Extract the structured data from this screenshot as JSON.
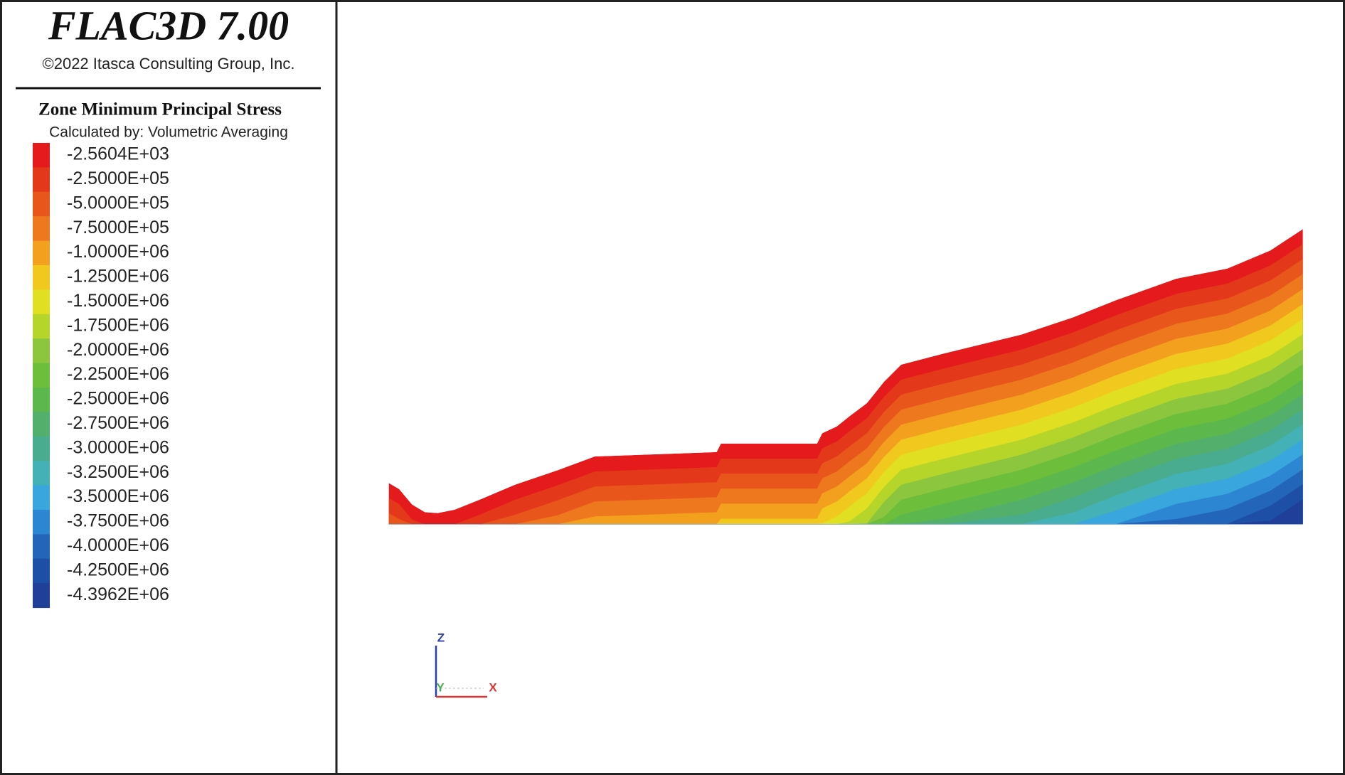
{
  "header": {
    "title": "FLAC3D 7.00",
    "copyright": "©2022 Itasca Consulting Group, Inc."
  },
  "legend": {
    "title": "Zone Minimum Principal Stress",
    "subtitle": "Calculated by: Volumetric Averaging",
    "items": [
      {
        "label": "-2.5604E+03",
        "color": "#e41a1c"
      },
      {
        "label": "-2.5000E+05",
        "color": "#e4381a"
      },
      {
        "label": "-5.0000E+05",
        "color": "#e9561c"
      },
      {
        "label": "-7.5000E+05",
        "color": "#ee781e"
      },
      {
        "label": "-1.0000E+06",
        "color": "#f3a01f"
      },
      {
        "label": "-1.2500E+06",
        "color": "#f1c81e"
      },
      {
        "label": "-1.5000E+06",
        "color": "#e0df22"
      },
      {
        "label": "-1.7500E+06",
        "color": "#b6d52b"
      },
      {
        "label": "-2.0000E+06",
        "color": "#8cc63f"
      },
      {
        "label": "-2.2500E+06",
        "color": "#6cbe3b"
      },
      {
        "label": "-2.5000E+06",
        "color": "#5cb74d"
      },
      {
        "label": "-2.7500E+06",
        "color": "#53b06c"
      },
      {
        "label": "-3.0000E+06",
        "color": "#4aac8e"
      },
      {
        "label": "-3.2500E+06",
        "color": "#43b1b6"
      },
      {
        "label": "-3.5000E+06",
        "color": "#39a6dd"
      },
      {
        "label": "-3.7500E+06",
        "color": "#2d86d1"
      },
      {
        "label": "-4.0000E+06",
        "color": "#2365b8"
      },
      {
        "label": "-4.2500E+06",
        "color": "#1e4fa6"
      },
      {
        "label": "-4.3962E+06",
        "color": "#1f3f99"
      }
    ]
  },
  "triad": {
    "z": "Z",
    "y": "Y",
    "x": "X"
  }
}
